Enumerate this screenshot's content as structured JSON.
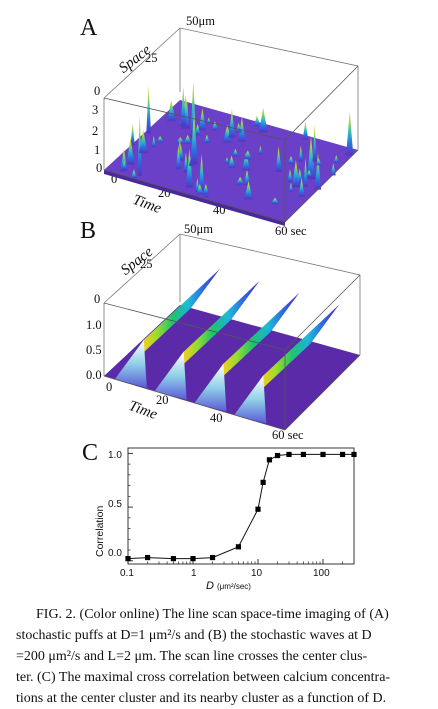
{
  "panels": {
    "a": {
      "letter": "A",
      "space_label": "Space",
      "time_label": "Time",
      "space_ticks": [
        "50μm",
        "25",
        "0"
      ],
      "z_ticks": [
        "3",
        "2",
        "1",
        "0"
      ],
      "time_ticks": [
        "0",
        "20",
        "40",
        "60 sec"
      ]
    },
    "b": {
      "letter": "B",
      "space_label": "Space",
      "time_label": "Time",
      "space_ticks": [
        "50μm",
        "25",
        "0"
      ],
      "z_ticks": [
        "1.0",
        "0.5",
        "0.0"
      ],
      "time_ticks": [
        "0",
        "20",
        "40",
        "60 sec"
      ]
    },
    "c": {
      "letter": "C",
      "ylabel": "Correlation",
      "xlabel_var": "D",
      "xlabel_units": "(μm²/sec)",
      "yticks": [
        "0.0",
        "0.5",
        "1.0"
      ],
      "xticks": [
        "0.1",
        "1",
        "10",
        "100"
      ]
    }
  },
  "chart_data": {
    "type": "line",
    "x": [
      0.1,
      0.2,
      0.5,
      1,
      2,
      5,
      10,
      12,
      15,
      20,
      30,
      50,
      100,
      200,
      300
    ],
    "y": [
      0.02,
      0.03,
      0.02,
      0.02,
      0.03,
      0.13,
      0.48,
      0.73,
      0.94,
      0.98,
      0.99,
      0.99,
      0.99,
      0.99,
      0.99
    ],
    "xscale": "log",
    "xlim": [
      0.1,
      300
    ],
    "ylim": [
      -0.03,
      1.05
    ],
    "ylabel": "Correlation",
    "xlabel": "D (μm²/sec)",
    "marker": "square",
    "grid": false
  },
  "caption": {
    "line1": "FIG. 2. (Color online) The line scan space-time imaging of (A)",
    "line2": "stochastic puffs at D=1 μm²/s and (B) the stochastic waves at D",
    "line3": "=200 μm²/s and L=2 μm. The scan line crosses the center clus-",
    "line4": "ter. (C) The maximal cross correlation between calcium concentra-",
    "line5": "tions at the center cluster and its nearby cluster as a function of D."
  }
}
